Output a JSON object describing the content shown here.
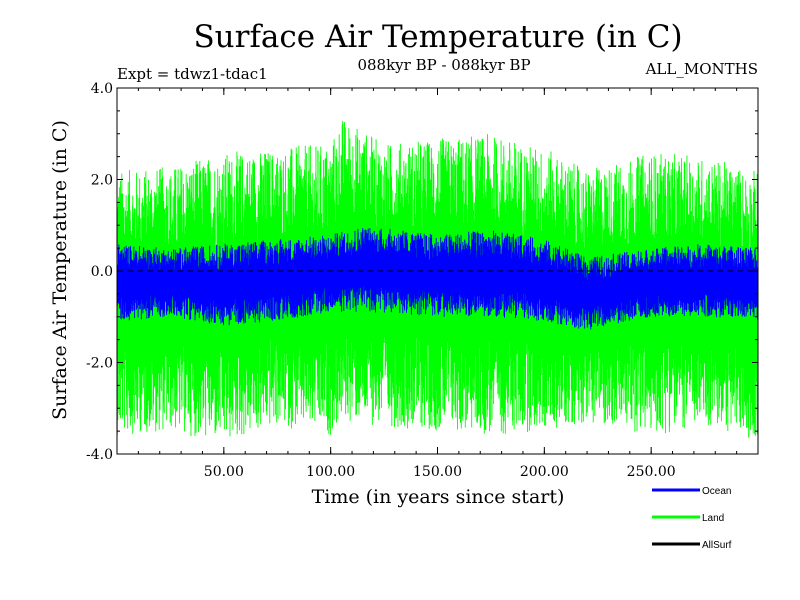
{
  "chart_data": {
    "type": "line",
    "title": "Surface Air Temperature (in C)",
    "subtitle": "088kyr BP - 088kyr BP",
    "expt_label": "Expt = tdwz1-tdac1",
    "season_label": "ALL_MONTHS",
    "xlabel": "Time (in years since start)",
    "ylabel": "Surface Air Temperature (in C)",
    "xlim": [
      0,
      300
    ],
    "ylim": [
      -4.0,
      4.0
    ],
    "x_ticks": [
      50,
      100,
      150,
      200,
      250
    ],
    "x_tick_labels": [
      "50.00",
      "100.00",
      "150.00",
      "200.00",
      "250.00"
    ],
    "y_ticks": [
      4.0,
      2.0,
      0.0,
      -2.0,
      -4.0
    ],
    "y_tick_labels": [
      "4.0",
      "2.0",
      "0.0",
      "-2.0",
      "-4.0"
    ],
    "zero_line": true,
    "series": [
      {
        "name": "Land",
        "color": "#00ff00",
        "envelope_x": [
          0,
          25,
          50,
          75,
          100,
          105,
          125,
          150,
          175,
          200,
          220,
          250,
          275,
          300
        ],
        "envelope_max": [
          2.2,
          2.3,
          2.6,
          2.7,
          2.8,
          3.4,
          2.8,
          2.9,
          3.0,
          2.7,
          2.2,
          2.6,
          2.5,
          2.2
        ],
        "envelope_min": [
          -3.6,
          -3.5,
          -3.8,
          -3.4,
          -3.6,
          -3.3,
          -3.4,
          -3.5,
          -3.6,
          -3.5,
          -3.3,
          -3.6,
          -3.4,
          -3.7
        ]
      },
      {
        "name": "Ocean",
        "color": "#0000ff",
        "envelope_x": [
          0,
          25,
          50,
          75,
          100,
          115,
          150,
          175,
          200,
          220,
          250,
          275,
          300
        ],
        "envelope_max": [
          0.6,
          0.5,
          0.6,
          0.7,
          0.8,
          1.0,
          0.8,
          0.9,
          0.7,
          0.3,
          0.5,
          0.6,
          0.5
        ],
        "envelope_min": [
          -1.1,
          -1.0,
          -1.2,
          -1.1,
          -0.9,
          -0.9,
          -1.0,
          -1.0,
          -1.1,
          -1.3,
          -1.0,
          -1.0,
          -1.1
        ]
      },
      {
        "name": "AllSurf",
        "color": "#000000"
      }
    ],
    "legend": [
      {
        "label": "Ocean",
        "color": "#0000ff"
      },
      {
        "label": "Land",
        "color": "#00ff00"
      },
      {
        "label": "AllSurf",
        "color": "#000000"
      }
    ],
    "legend_position": "bottom-right"
  }
}
